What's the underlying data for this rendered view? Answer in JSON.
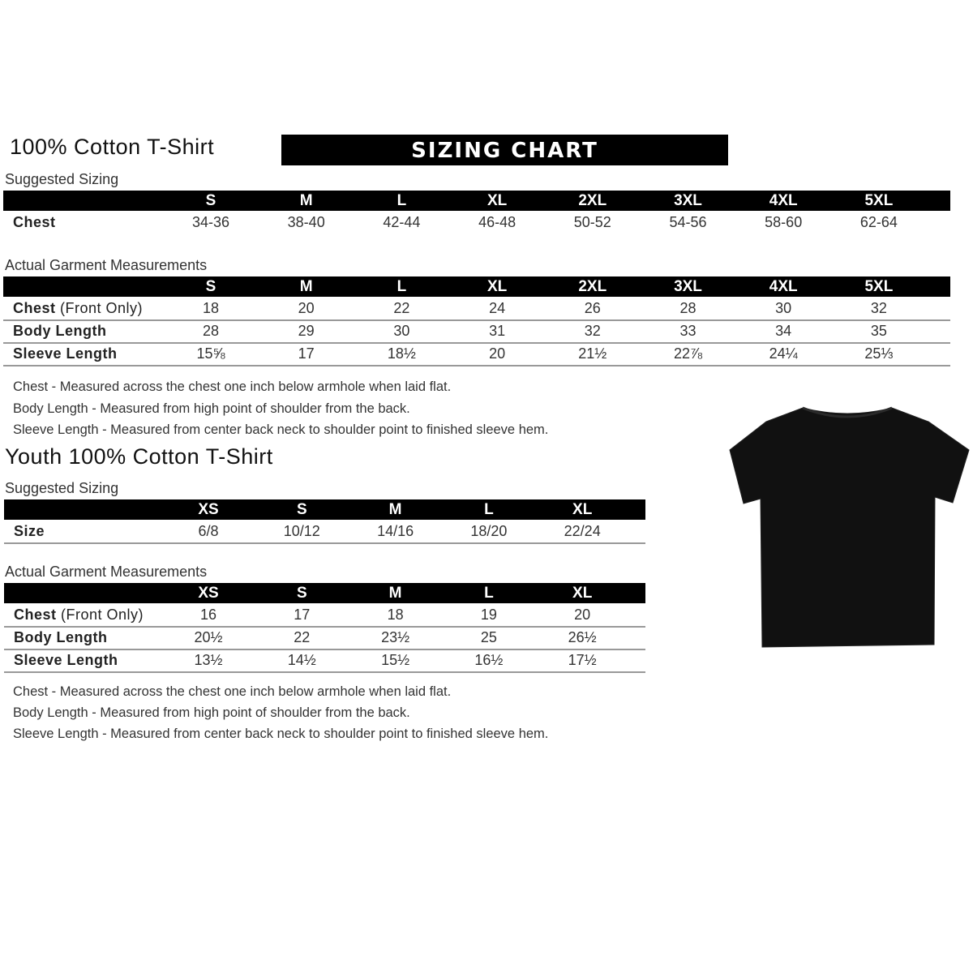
{
  "adult": {
    "title": "100% Cotton T-Shirt",
    "banner": "SIZING CHART",
    "suggested": {
      "label": "Suggested Sizing",
      "sizes": [
        "S",
        "M",
        "L",
        "XL",
        "2XL",
        "3XL",
        "4XL",
        "5XL"
      ],
      "rows": [
        {
          "label": "Chest",
          "values": [
            "34-36",
            "38-40",
            "42-44",
            "46-48",
            "50-52",
            "54-56",
            "58-60",
            "62-64"
          ]
        }
      ]
    },
    "actual": {
      "label": "Actual Garment Measurements",
      "sizes": [
        "S",
        "M",
        "L",
        "XL",
        "2XL",
        "3XL",
        "4XL",
        "5XL"
      ],
      "rows": [
        {
          "label": "Chest",
          "sublabel": " (Front Only)",
          "values": [
            "18",
            "20",
            "22",
            "24",
            "26",
            "28",
            "30",
            "32"
          ]
        },
        {
          "label": "Body Length",
          "values": [
            "28",
            "29",
            "30",
            "31",
            "32",
            "33",
            "34",
            "35"
          ]
        },
        {
          "label": "Sleeve Length",
          "values": [
            "15⅝",
            "17",
            "18½",
            "20",
            "21½",
            "22⅞",
            "24¼",
            "25⅓"
          ]
        }
      ]
    },
    "notes": [
      "Chest - Measured across the chest one inch below armhole when laid flat.",
      "Body Length - Measured from high point of shoulder from the back.",
      "Sleeve Length - Measured from center back neck to shoulder point to finished sleeve hem."
    ]
  },
  "youth": {
    "title": "Youth 100% Cotton T-Shirt",
    "suggested": {
      "label": "Suggested Sizing",
      "sizes": [
        "XS",
        "S",
        "M",
        "L",
        "XL"
      ],
      "rows": [
        {
          "label": "Size",
          "values": [
            "6/8",
            "10/12",
            "14/16",
            "18/20",
            "22/24"
          ]
        }
      ]
    },
    "actual": {
      "label": "Actual Garment Measurements",
      "sizes": [
        "XS",
        "S",
        "M",
        "L",
        "XL"
      ],
      "rows": [
        {
          "label": "Chest",
          "sublabel": " (Front Only)",
          "values": [
            "16",
            "17",
            "18",
            "19",
            "20"
          ]
        },
        {
          "label": "Body Length",
          "values": [
            "20½",
            "22",
            "23½",
            "25",
            "26½"
          ]
        },
        {
          "label": "Sleeve Length",
          "values": [
            "13½",
            "14½",
            "15½",
            "16½",
            "17½"
          ]
        }
      ]
    },
    "notes": [
      "Chest - Measured across the chest one inch below armhole when laid flat.",
      "Body Length - Measured from high point of shoulder from the back.",
      "Sleeve Length - Measured from center back neck to shoulder point to finished sleeve hem."
    ]
  },
  "image": {
    "name": "tshirt-image",
    "color": "#111111"
  }
}
